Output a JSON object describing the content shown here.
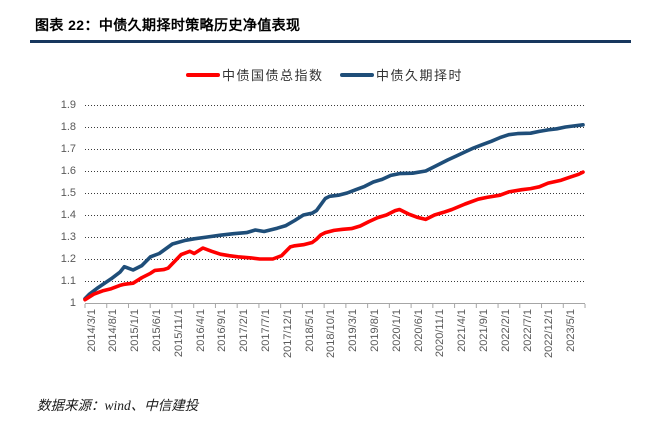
{
  "header": {
    "title": "图表 22：中债久期择时策略历史净值表现"
  },
  "legend": [
    {
      "label": "中债国债总指数",
      "color": "#FF0000"
    },
    {
      "label": "中债久期择时",
      "color": "#1F4E79"
    }
  ],
  "footer": {
    "source": "数据来源：wind、中信建投"
  },
  "colors": {
    "title_rule": "#17375E",
    "gridline": "#3a3a3a",
    "axis": "#A6A6A6",
    "tick_label": "#595959"
  },
  "chart_data": {
    "type": "line",
    "title": "图表 22：中债久期择时策略历史净值表现",
    "xlabel": "",
    "ylabel": "",
    "ylim": [
      1.0,
      1.9
    ],
    "y_tick_labels": [
      "1",
      "1.1",
      "1.2",
      "1.3",
      "1.4",
      "1.5",
      "1.6",
      "1.7",
      "1.8",
      "1.9"
    ],
    "x_tick_labels": [
      "2014/3/1",
      "2014/8/1",
      "2015/1/1",
      "2015/6/1",
      "2015/11/1",
      "2016/4/1",
      "2016/9/1",
      "2017/2/1",
      "2017/7/1",
      "2017/12/1",
      "2018/5/1",
      "2018/10/1",
      "2019/3/1",
      "2019/8/1",
      "2020/1/1",
      "2020/6/1",
      "2020/11/1",
      "2021/4/1",
      "2021/9/1",
      "2022/2/1",
      "2022/7/1",
      "2022/12/1",
      "2023/5/1"
    ],
    "x_unit": "months since 2014/3/1 (points given as [month, net_value])",
    "x_range_months": [
      0,
      114
    ],
    "grid": "horizontal dotted",
    "legend_position": "top",
    "series": [
      {
        "name": "中债久期择时",
        "color": "#1F4E79",
        "points": [
          [
            0,
            1.02
          ],
          [
            1,
            1.04
          ],
          [
            3,
            1.07
          ],
          [
            6,
            1.11
          ],
          [
            8,
            1.14
          ],
          [
            9,
            1.165
          ],
          [
            11,
            1.15
          ],
          [
            13,
            1.17
          ],
          [
            15,
            1.21
          ],
          [
            17,
            1.225
          ],
          [
            20,
            1.268
          ],
          [
            23,
            1.285
          ],
          [
            25,
            1.292
          ],
          [
            28,
            1.3
          ],
          [
            31,
            1.308
          ],
          [
            34,
            1.315
          ],
          [
            37,
            1.32
          ],
          [
            39,
            1.332
          ],
          [
            41,
            1.325
          ],
          [
            44,
            1.34
          ],
          [
            46,
            1.352
          ],
          [
            48,
            1.375
          ],
          [
            50,
            1.4
          ],
          [
            52,
            1.408
          ],
          [
            53,
            1.42
          ],
          [
            55,
            1.475
          ],
          [
            56,
            1.485
          ],
          [
            58,
            1.49
          ],
          [
            60,
            1.5
          ],
          [
            62,
            1.515
          ],
          [
            64,
            1.53
          ],
          [
            66,
            1.55
          ],
          [
            68,
            1.562
          ],
          [
            70,
            1.58
          ],
          [
            72,
            1.588
          ],
          [
            75,
            1.59
          ],
          [
            78,
            1.6
          ],
          [
            80,
            1.62
          ],
          [
            83,
            1.65
          ],
          [
            85,
            1.668
          ],
          [
            87,
            1.687
          ],
          [
            89,
            1.705
          ],
          [
            91,
            1.72
          ],
          [
            93,
            1.735
          ],
          [
            95,
            1.752
          ],
          [
            97,
            1.765
          ],
          [
            99,
            1.77
          ],
          [
            102,
            1.772
          ],
          [
            104,
            1.78
          ],
          [
            106,
            1.787
          ],
          [
            108,
            1.792
          ],
          [
            110,
            1.8
          ],
          [
            112,
            1.805
          ],
          [
            114,
            1.81
          ]
        ]
      },
      {
        "name": "中债国债总指数",
        "color": "#FF0000",
        "points": [
          [
            0,
            1.015
          ],
          [
            2,
            1.04
          ],
          [
            4,
            1.055
          ],
          [
            6,
            1.065
          ],
          [
            8,
            1.08
          ],
          [
            9,
            1.085
          ],
          [
            11,
            1.09
          ],
          [
            13,
            1.115
          ],
          [
            15,
            1.135
          ],
          [
            16,
            1.148
          ],
          [
            18,
            1.152
          ],
          [
            19,
            1.158
          ],
          [
            22,
            1.22
          ],
          [
            24,
            1.235
          ],
          [
            25,
            1.225
          ],
          [
            27,
            1.25
          ],
          [
            29,
            1.235
          ],
          [
            31,
            1.222
          ],
          [
            33,
            1.215
          ],
          [
            35,
            1.21
          ],
          [
            38,
            1.205
          ],
          [
            40,
            1.2
          ],
          [
            43,
            1.2
          ],
          [
            45,
            1.215
          ],
          [
            47,
            1.255
          ],
          [
            48,
            1.26
          ],
          [
            50,
            1.265
          ],
          [
            52,
            1.275
          ],
          [
            53,
            1.29
          ],
          [
            54,
            1.31
          ],
          [
            55,
            1.32
          ],
          [
            57,
            1.33
          ],
          [
            59,
            1.335
          ],
          [
            61,
            1.338
          ],
          [
            63,
            1.35
          ],
          [
            65,
            1.37
          ],
          [
            67,
            1.388
          ],
          [
            69,
            1.4
          ],
          [
            71,
            1.42
          ],
          [
            72,
            1.425
          ],
          [
            74,
            1.405
          ],
          [
            76,
            1.39
          ],
          [
            78,
            1.38
          ],
          [
            80,
            1.4
          ],
          [
            82,
            1.412
          ],
          [
            84,
            1.425
          ],
          [
            87,
            1.45
          ],
          [
            90,
            1.472
          ],
          [
            92,
            1.48
          ],
          [
            95,
            1.49
          ],
          [
            97,
            1.505
          ],
          [
            100,
            1.515
          ],
          [
            102,
            1.52
          ],
          [
            104,
            1.528
          ],
          [
            106,
            1.545
          ],
          [
            109,
            1.558
          ],
          [
            111,
            1.572
          ],
          [
            113,
            1.585
          ],
          [
            114,
            1.595
          ]
        ]
      }
    ]
  }
}
